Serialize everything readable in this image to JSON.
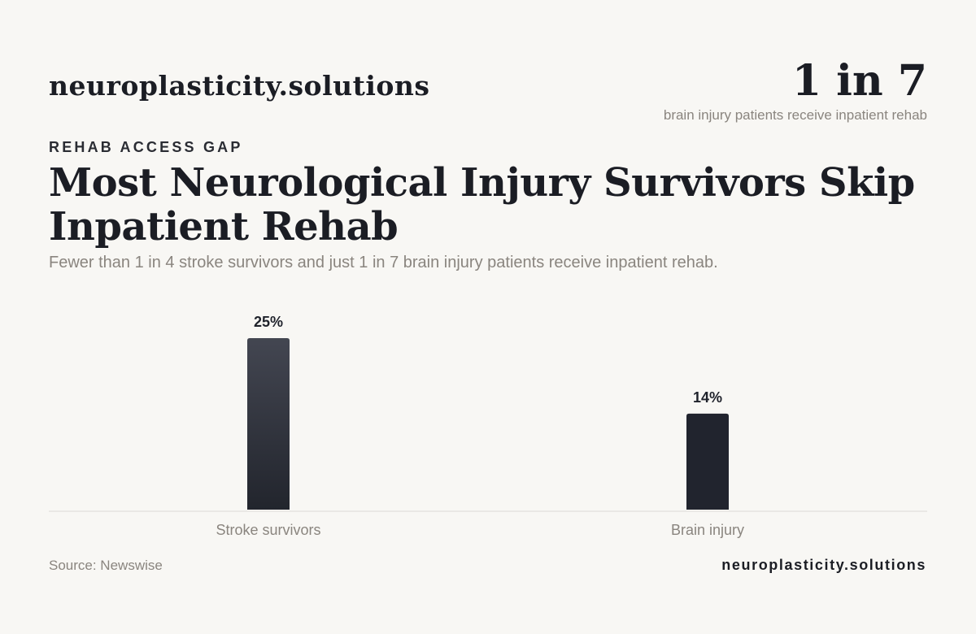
{
  "header": {
    "brand": "neuroplasticity.solutions",
    "stat_value": "1 in 7",
    "stat_caption": "brain injury patients receive inpatient rehab"
  },
  "eyebrow": "REHAB ACCESS GAP",
  "title": "Most Neurological Injury Survivors Skip Inpatient Rehab",
  "subtitle": "Fewer than 1 in 4 stroke survivors and just 1 in 7 brain injury patients receive inpatient rehab.",
  "footer": {
    "source": "Source: Newswise",
    "brand": "neuroplasticity.solutions"
  },
  "colors": {
    "background": "#f8f7f4",
    "bar_gradient_top": "#434651",
    "bar_gradient_bottom": "#22252d",
    "bar_solid": "#21242e",
    "axis_line": "#dcdad6",
    "category_text": "#8a857f",
    "value_text": "#1f222b"
  },
  "chart_data": {
    "type": "bar",
    "title": "Most Neurological Injury Survivors Skip Inpatient Rehab",
    "categories": [
      "Stroke survivors",
      "Brain injury"
    ],
    "values": [
      25,
      14
    ],
    "data_labels": [
      "25%",
      "14%"
    ],
    "unit": "%",
    "ylim": [
      0,
      25
    ],
    "grid": false,
    "legend": "none"
  }
}
